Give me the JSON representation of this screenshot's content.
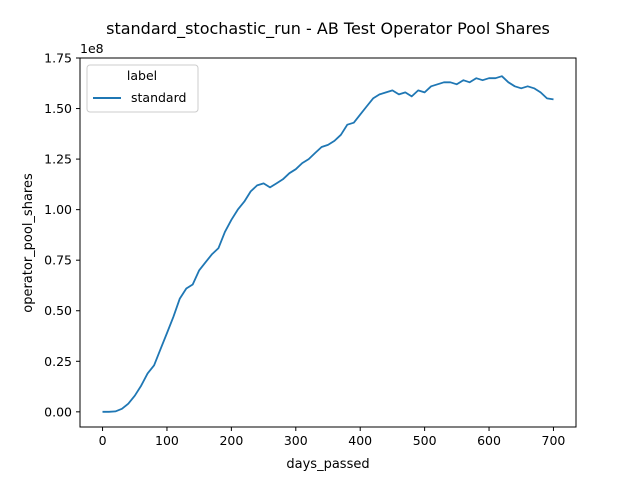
{
  "chart_data": {
    "type": "line",
    "title": "standard_stochastic_run - AB Test Operator Pool Shares",
    "xlabel": "days_passed",
    "ylabel": "operator_pool_shares",
    "y_offset_label": "1e8",
    "xlim": [
      -35,
      735
    ],
    "ylim": [
      -7500000,
      175000000
    ],
    "x_ticks": [
      0,
      100,
      200,
      300,
      400,
      500,
      600,
      700
    ],
    "x_tick_labels": [
      "0",
      "100",
      "200",
      "300",
      "400",
      "500",
      "600",
      "700"
    ],
    "y_ticks": [
      0,
      25000000,
      50000000,
      75000000,
      100000000,
      125000000,
      150000000,
      175000000
    ],
    "y_tick_labels": [
      "0.00",
      "0.25",
      "0.50",
      "0.75",
      "1.00",
      "1.25",
      "1.50",
      "1.75"
    ],
    "grid": false,
    "legend": {
      "title": "label",
      "placement": "top-left",
      "entries": [
        "standard"
      ]
    },
    "series": [
      {
        "name": "standard",
        "color": "#1f77b4",
        "x": [
          0,
          10,
          20,
          30,
          40,
          50,
          60,
          70,
          80,
          90,
          100,
          110,
          120,
          130,
          140,
          150,
          160,
          170,
          180,
          190,
          200,
          210,
          220,
          230,
          240,
          250,
          260,
          270,
          280,
          290,
          300,
          310,
          320,
          330,
          340,
          350,
          360,
          370,
          380,
          390,
          400,
          410,
          420,
          430,
          440,
          450,
          460,
          470,
          480,
          490,
          500,
          510,
          520,
          530,
          540,
          550,
          560,
          570,
          580,
          590,
          600,
          610,
          620,
          630,
          640,
          650,
          660,
          670,
          680,
          690,
          700
        ],
        "y": [
          0,
          0,
          200000,
          1500000,
          4000000,
          8000000,
          13000000,
          19000000,
          23000000,
          31000000,
          39000000,
          47000000,
          56000000,
          61000000,
          63000000,
          70000000,
          74000000,
          78000000,
          81000000,
          89000000,
          95000000,
          100000000,
          104000000,
          109000000,
          112000000,
          113000000,
          111000000,
          113000000,
          115000000,
          118000000,
          120000000,
          123000000,
          125000000,
          128000000,
          131000000,
          132000000,
          134000000,
          137000000,
          142000000,
          143000000,
          147000000,
          151000000,
          155000000,
          157000000,
          158000000,
          159000000,
          157000000,
          158000000,
          156000000,
          159000000,
          158000000,
          161000000,
          162000000,
          163000000,
          163000000,
          162000000,
          164000000,
          163000000,
          165000000,
          164000000,
          165000000,
          165000000,
          166000000,
          163000000,
          161000000,
          160000000,
          161000000,
          160000000,
          158000000,
          155000000,
          154500000
        ]
      }
    ]
  }
}
